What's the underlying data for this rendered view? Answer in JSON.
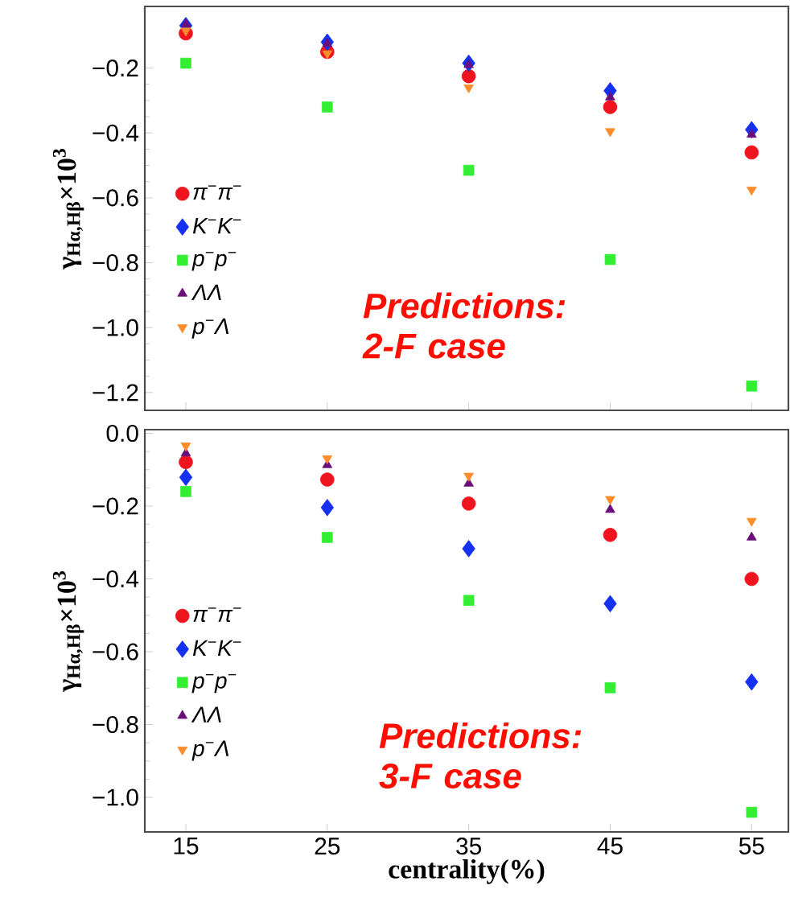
{
  "chart_data": [
    {
      "type": "scatter",
      "ylabel": "γ$_{Hα,Hβ}$×10$^{3}$",
      "annotations": [
        "Predictions: 2-F case"
      ],
      "legend": "left",
      "tick_labels": "y",
      "x": [
        15,
        25,
        35,
        45,
        55
      ],
      "xlim": [
        12.1,
        57.6
      ],
      "xticks": [
        15,
        25,
        35,
        45,
        55
      ],
      "ylim": [
        -1.255,
        -0.01
      ],
      "yticks": [
        {
          "value": -0.2,
          "label": "−0.2"
        },
        {
          "value": -0.4,
          "label": "−0.4"
        },
        {
          "value": -0.6,
          "label": "−0.6"
        },
        {
          "value": -0.8,
          "label": "−0.8"
        },
        {
          "value": -1.0,
          "label": "−1.0"
        },
        {
          "value": -1.2,
          "label": "−1.2"
        }
      ],
      "series": [
        {
          "name": "π$^{−}$π$^{−}$",
          "color": "#f0141e",
          "marker": "circle",
          "values": [
            -0.093,
            -0.15,
            -0.225,
            -0.32,
            -0.46
          ]
        },
        {
          "name": "K$^{−}$K$^{−}$",
          "color": "#1430f0",
          "marker": "diamond",
          "values": [
            -0.069,
            -0.12,
            -0.185,
            -0.27,
            -0.39
          ]
        },
        {
          "name": "p$^{−}$p$^{−}$",
          "color": "#33ee33",
          "marker": "square",
          "values": [
            -0.185,
            -0.32,
            -0.515,
            -0.79,
            -1.18
          ]
        },
        {
          "name": "ΛΛ",
          "color": "#6a0f7a",
          "marker": "triangle",
          "values": [
            -0.065,
            -0.125,
            -0.19,
            -0.29,
            -0.405
          ]
        },
        {
          "name": "p$^{−}$Λ",
          "color": "#ff8c2a",
          "marker": "triangle-down",
          "values": [
            -0.085,
            -0.155,
            -0.26,
            -0.395,
            -0.575
          ]
        }
      ]
    },
    {
      "type": "scatter",
      "ylabel": "γ$_{Hα,Hβ}$×10$^{3}$",
      "xlabel": "centrality(%)",
      "annotations": [
        "Predictions: 3-F case"
      ],
      "legend": "left",
      "x": [
        15,
        25,
        35,
        45,
        55
      ],
      "xlim": [
        12.1,
        57.6
      ],
      "xticks": [
        15,
        25,
        35,
        45,
        55
      ],
      "ylim": [
        -1.095,
        0.01
      ],
      "yticks": [
        {
          "value": 0.0,
          "label": "0.0"
        },
        {
          "value": -0.2,
          "label": "−0.2"
        },
        {
          "value": -0.4,
          "label": "−0.4"
        },
        {
          "value": -0.6,
          "label": "−0.6"
        },
        {
          "value": -0.8,
          "label": "−0.8"
        },
        {
          "value": -1.0,
          "label": "−1.0"
        }
      ],
      "series": [
        {
          "name": "π$^{−}$π$^{−}$",
          "color": "#f0141e",
          "marker": "circle",
          "values": [
            -0.079,
            -0.127,
            -0.193,
            -0.279,
            -0.4
          ]
        },
        {
          "name": "K$^{−}$K$^{−}$",
          "color": "#1430f0",
          "marker": "diamond",
          "values": [
            -0.121,
            -0.204,
            -0.317,
            -0.468,
            -0.683
          ]
        },
        {
          "name": "p$^{−}$p$^{−}$",
          "color": "#33ee33",
          "marker": "square",
          "values": [
            -0.16,
            -0.286,
            -0.459,
            -0.699,
            -1.041
          ]
        },
        {
          "name": "ΛΛ",
          "color": "#6a0f7a",
          "marker": "triangle",
          "values": [
            -0.055,
            -0.087,
            -0.138,
            -0.21,
            -0.286
          ]
        },
        {
          "name": "p$^{−}$Λ",
          "color": "#ff8c2a",
          "marker": "triangle-down",
          "values": [
            -0.034,
            -0.069,
            -0.117,
            -0.181,
            -0.241
          ]
        }
      ]
    }
  ]
}
